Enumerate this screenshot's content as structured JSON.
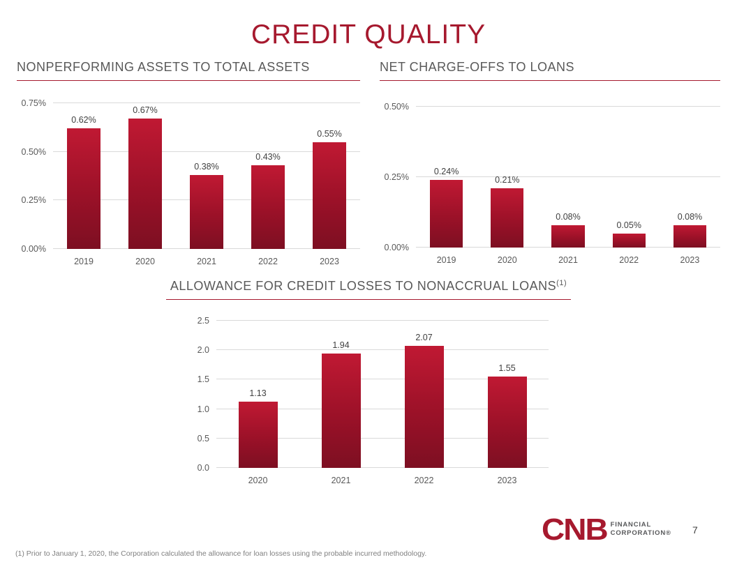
{
  "slide": {
    "title": "CREDIT QUALITY",
    "page_number": "7",
    "footnote": "(1) Prior to January 1, 2020, the Corporation calculated the allowance for loan losses using the probable incurred methodology.",
    "logo": {
      "brand": "CNB",
      "line1": "FINANCIAL",
      "line2": "CORPORATION®"
    }
  },
  "colors": {
    "accent_red": "#A6192E",
    "bar_gradient_top": "#C01933",
    "bar_gradient_mid": "#9B1128",
    "bar_gradient_bottom": "#7D0F22",
    "grid": "#D9D9D9",
    "heading_gray": "#595959",
    "label_gray": "#404040"
  },
  "chart_data": [
    {
      "type": "bar",
      "title": "NONPERFORMING ASSETS TO TOTAL ASSETS",
      "categories": [
        "2019",
        "2020",
        "2021",
        "2022",
        "2023"
      ],
      "values": [
        0.62,
        0.67,
        0.38,
        0.43,
        0.55
      ],
      "data_labels": [
        "0.62%",
        "0.67%",
        "0.38%",
        "0.43%",
        "0.55%"
      ],
      "xlabel": "",
      "ylabel": "",
      "ylim": [
        0,
        0.75
      ],
      "yticks": [
        "0.00%",
        "0.25%",
        "0.50%",
        "0.75%"
      ],
      "ytick_values": [
        0,
        0.25,
        0.5,
        0.75
      ],
      "grid": true,
      "legend": "none"
    },
    {
      "type": "bar",
      "title": "NET CHARGE-OFFS TO LOANS",
      "categories": [
        "2019",
        "2020",
        "2021",
        "2022",
        "2023"
      ],
      "values": [
        0.24,
        0.21,
        0.08,
        0.05,
        0.08
      ],
      "data_labels": [
        "0.24%",
        "0.21%",
        "0.08%",
        "0.05%",
        "0.08%"
      ],
      "xlabel": "",
      "ylabel": "",
      "ylim": [
        0,
        0.5
      ],
      "yticks": [
        "0.00%",
        "0.25%",
        "0.50%"
      ],
      "ytick_values": [
        0,
        0.25,
        0.5
      ],
      "grid": true,
      "legend": "none"
    },
    {
      "type": "bar",
      "title": "ALLOWANCE FOR CREDIT LOSSES TO NONACCRUAL LOANS",
      "title_superscript": "(1)",
      "categories": [
        "2020",
        "2021",
        "2022",
        "2023"
      ],
      "values": [
        1.13,
        1.94,
        2.07,
        1.55
      ],
      "data_labels": [
        "1.13",
        "1.94",
        "2.07",
        "1.55"
      ],
      "xlabel": "",
      "ylabel": "",
      "ylim": [
        0,
        2.5
      ],
      "yticks": [
        "0.0",
        "0.5",
        "1.0",
        "1.5",
        "2.0",
        "2.5"
      ],
      "ytick_values": [
        0,
        0.5,
        1.0,
        1.5,
        2.0,
        2.5
      ],
      "grid": true,
      "legend": "none"
    }
  ]
}
